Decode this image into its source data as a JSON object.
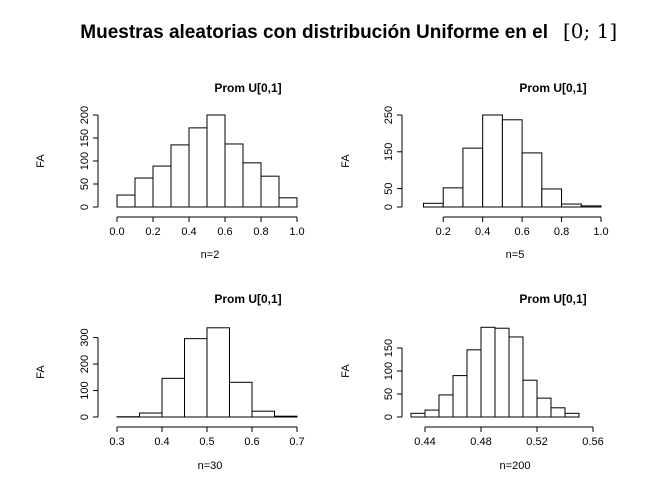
{
  "title": "Muestras aleatorias con distribución Uniforme en el",
  "title_math": "[0; 1]",
  "chart_data": [
    {
      "type": "histogram",
      "title": "Prom U[0,1]",
      "xlabel": "n=2",
      "ylabel": "FA",
      "bins": [
        0,
        0.1,
        0.2,
        0.3,
        0.4,
        0.5,
        0.6,
        0.7,
        0.8,
        0.9,
        1.0
      ],
      "counts": [
        26,
        63,
        89,
        135,
        172,
        200,
        137,
        96,
        67,
        20
      ],
      "xlim": [
        0,
        1
      ],
      "ylim": [
        0,
        200
      ],
      "xticks": [
        {
          "value": 0,
          "label": "0.0"
        },
        0.2,
        0.4,
        0.6,
        0.8,
        {
          "value": 1,
          "label": "1.0"
        }
      ],
      "yticks": [
        0,
        50,
        100,
        150,
        200
      ]
    },
    {
      "type": "histogram",
      "title": "Prom U[0,1]",
      "xlabel": "n=5",
      "ylabel": "FA",
      "bins": [
        0.1,
        0.2,
        0.3,
        0.4,
        0.5,
        0.6,
        0.7,
        0.8,
        0.9,
        1.0
      ],
      "counts": [
        10,
        52,
        160,
        250,
        237,
        147,
        49,
        8,
        3
      ],
      "xlim": [
        0.1,
        1.0
      ],
      "ylim": [
        0,
        250
      ],
      "xticks": [
        0.2,
        0.4,
        0.6,
        0.8,
        {
          "value": 1,
          "label": "1.0"
        }
      ],
      "yticks": [
        0,
        50,
        150,
        250
      ]
    },
    {
      "type": "histogram",
      "title": "Prom U[0,1]",
      "xlabel": "n=30",
      "ylabel": "FA",
      "bins": [
        0.3,
        0.35,
        0.4,
        0.45,
        0.5,
        0.55,
        0.6,
        0.65,
        0.7
      ],
      "counts": [
        1,
        15,
        146,
        296,
        337,
        131,
        22,
        3
      ],
      "xlim": [
        0.3,
        0.7
      ],
      "ylim": [
        0,
        340
      ],
      "xticks": [
        0.3,
        0.4,
        0.5,
        0.6,
        0.7
      ],
      "yticks": [
        0,
        100,
        200,
        300
      ]
    },
    {
      "type": "histogram",
      "title": "Prom U[0,1]",
      "xlabel": "n=200",
      "ylabel": "FA",
      "bins": [
        0.43,
        0.44,
        0.45,
        0.46,
        0.47,
        0.48,
        0.49,
        0.5,
        0.51,
        0.52,
        0.53,
        0.54,
        0.55
      ],
      "counts": [
        8,
        15,
        48,
        90,
        146,
        195,
        193,
        174,
        80,
        41,
        20,
        8
      ],
      "xlim": [
        0.43,
        0.56
      ],
      "ylim": [
        0,
        200
      ],
      "xticks": [
        0.44,
        0.48,
        0.52,
        0.56
      ],
      "yticks": [
        0,
        50,
        100,
        150
      ]
    }
  ]
}
